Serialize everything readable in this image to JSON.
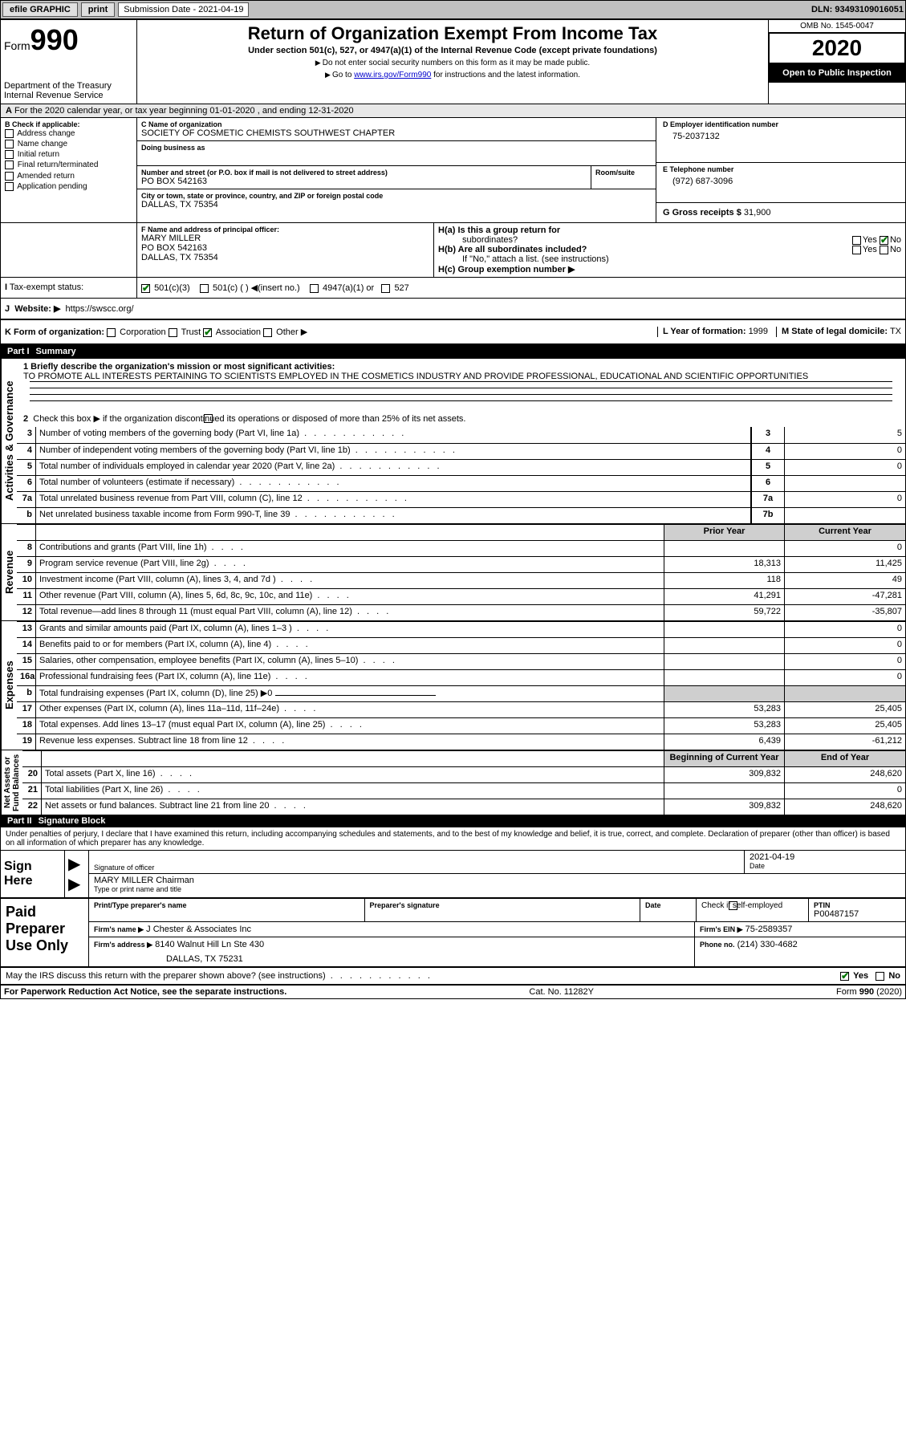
{
  "topbar": {
    "efile": "efile GRAPHIC",
    "print": "print",
    "sub_label": "Submission Date - 2021-04-19",
    "dln": "DLN: 93493109016051"
  },
  "header": {
    "form_word": "Form",
    "form_num": "990",
    "dept": "Department of the Treasury\nInternal Revenue Service",
    "title": "Return of Organization Exempt From Income Tax",
    "sub1": "Under section 501(c), 527, or 4947(a)(1) of the Internal Revenue Code (except private foundations)",
    "sub2": "Do not enter social security numbers on this form as it may be made public.",
    "sub3_pre": "Go to ",
    "sub3_link": "www.irs.gov/Form990",
    "sub3_post": " for instructions and the latest information.",
    "omb": "OMB No. 1545-0047",
    "year": "2020",
    "inspect": "Open to Public Inspection"
  },
  "lineA": {
    "text": "For the 2020 calendar year, or tax year beginning 01-01-2020   , and ending 12-31-2020",
    "prefix": "A"
  },
  "boxB": {
    "title": "B Check if applicable:",
    "items": [
      "Address change",
      "Name change",
      "Initial return",
      "Final return/terminated",
      "Amended return",
      "Application pending"
    ]
  },
  "boxC": {
    "name_label": "C Name of organization",
    "name": "SOCIETY OF COSMETIC CHEMISTS SOUTHWEST CHAPTER",
    "dba_label": "Doing business as",
    "addr_label": "Number and street (or P.O. box if mail is not delivered to street address)",
    "room_label": "Room/suite",
    "addr": "PO BOX 542163",
    "city_label": "City or town, state or province, country, and ZIP or foreign postal code",
    "city": "DALLAS, TX  75354"
  },
  "boxD": {
    "label": "D Employer identification number",
    "value": "75-2037132"
  },
  "boxE": {
    "label": "E Telephone number",
    "value": "(972) 687-3096"
  },
  "boxG": {
    "label": "G Gross receipts $",
    "value": "31,900"
  },
  "boxF": {
    "label": "F  Name and address of principal officer:",
    "name": "MARY MILLER",
    "addr1": "PO BOX 542163",
    "addr2": "DALLAS, TX  75354"
  },
  "boxH": {
    "a_label": "H(a)  Is this a group return for",
    "a_sub": "subordinates?",
    "b_label": "H(b)  Are all subordinates included?",
    "b_note": "If \"No,\" attach a list. (see instructions)",
    "c_label": "H(c)  Group exemption number ▶",
    "yes": "Yes",
    "no": "No"
  },
  "boxI": {
    "label": "Tax-exempt status:",
    "opts": [
      "501(c)(3)",
      "501(c) (  ) ◀(insert no.)",
      "4947(a)(1) or",
      "527"
    ]
  },
  "boxJ": {
    "label": "J",
    "text": "Website: ▶",
    "value": "https://swscc.org/"
  },
  "boxK": {
    "label": "K Form of organization:",
    "opts": [
      "Corporation",
      "Trust",
      "Association",
      "Other ▶"
    ],
    "checked_idx": 2
  },
  "boxL": {
    "label": "L Year of formation:",
    "value": "1999"
  },
  "boxM": {
    "label": "M State of legal domicile:",
    "value": "TX"
  },
  "part1": {
    "label": "Part I",
    "title": "Summary",
    "l1_label": "1  Briefly describe the organization's mission or most significant activities:",
    "l1_text": "TO PROMOTE ALL INTERESTS PERTAINING TO SCIENTISTS EMPLOYED IN THE COSMETICS INDUSTRY AND PROVIDE PROFESSIONAL, EDUCATIONAL AND SCIENTIFIC OPPORTUNITIES",
    "l2": "Check this box ▶       if the organization discontinued its operations or disposed of more than 25% of its net assets.",
    "lines_single": [
      {
        "n": "3",
        "t": "Number of voting members of the governing body (Part VI, line 1a)",
        "box": "3",
        "v": "5"
      },
      {
        "n": "4",
        "t": "Number of independent voting members of the governing body (Part VI, line 1b)",
        "box": "4",
        "v": "0"
      },
      {
        "n": "5",
        "t": "Total number of individuals employed in calendar year 2020 (Part V, line 2a)",
        "box": "5",
        "v": "0"
      },
      {
        "n": "6",
        "t": "Total number of volunteers (estimate if necessary)",
        "box": "6",
        "v": ""
      },
      {
        "n": "7a",
        "t": "Total unrelated business revenue from Part VIII, column (C), line 12",
        "box": "7a",
        "v": "0"
      },
      {
        "n": "b",
        "t": "Net unrelated business taxable income from Form 990-T, line 39",
        "box": "7b",
        "v": ""
      }
    ],
    "col_prior": "Prior Year",
    "col_curr": "Current Year",
    "revenue_tab": "Revenue",
    "revenue": [
      {
        "n": "8",
        "t": "Contributions and grants (Part VIII, line 1h)",
        "p": "",
        "c": "0"
      },
      {
        "n": "9",
        "t": "Program service revenue (Part VIII, line 2g)",
        "p": "18,313",
        "c": "11,425"
      },
      {
        "n": "10",
        "t": "Investment income (Part VIII, column (A), lines 3, 4, and 7d )",
        "p": "118",
        "c": "49"
      },
      {
        "n": "11",
        "t": "Other revenue (Part VIII, column (A), lines 5, 6d, 8c, 9c, 10c, and 11e)",
        "p": "41,291",
        "c": "-47,281"
      },
      {
        "n": "12",
        "t": "Total revenue—add lines 8 through 11 (must equal Part VIII, column (A), line 12)",
        "p": "59,722",
        "c": "-35,807"
      }
    ],
    "expenses_tab": "Expenses",
    "expenses": [
      {
        "n": "13",
        "t": "Grants and similar amounts paid (Part IX, column (A), lines 1–3 )",
        "p": "",
        "c": "0"
      },
      {
        "n": "14",
        "t": "Benefits paid to or for members (Part IX, column (A), line 4)",
        "p": "",
        "c": "0"
      },
      {
        "n": "15",
        "t": "Salaries, other compensation, employee benefits (Part IX, column (A), lines 5–10)",
        "p": "",
        "c": "0"
      },
      {
        "n": "16a",
        "t": "Professional fundraising fees (Part IX, column (A), line 11e)",
        "p": "",
        "c": "0"
      },
      {
        "n": "b",
        "t": "Total fundraising expenses (Part IX, column (D), line 25) ▶0",
        "p": "shade",
        "c": "shade"
      },
      {
        "n": "17",
        "t": "Other expenses (Part IX, column (A), lines 11a–11d, 11f–24e)",
        "p": "53,283",
        "c": "25,405"
      },
      {
        "n": "18",
        "t": "Total expenses. Add lines 13–17 (must equal Part IX, column (A), line 25)",
        "p": "53,283",
        "c": "25,405"
      },
      {
        "n": "19",
        "t": "Revenue less expenses. Subtract line 18 from line 12",
        "p": "6,439",
        "c": "-61,212"
      }
    ],
    "net_tab": "Net Assets or\nFund Balances",
    "col_beg": "Beginning of Current Year",
    "col_end": "End of Year",
    "net": [
      {
        "n": "20",
        "t": "Total assets (Part X, line 16)",
        "p": "309,832",
        "c": "248,620"
      },
      {
        "n": "21",
        "t": "Total liabilities (Part X, line 26)",
        "p": "",
        "c": "0"
      },
      {
        "n": "22",
        "t": "Net assets or fund balances. Subtract line 21 from line 20",
        "p": "309,832",
        "c": "248,620"
      }
    ],
    "activities_tab": "Activities & Governance"
  },
  "part2": {
    "label": "Part II",
    "title": "Signature Block",
    "decl": "Under penalties of perjury, I declare that I have examined this return, including accompanying schedules and statements, and to the best of my knowledge and belief, it is true, correct, and complete. Declaration of preparer (other than officer) is based on all information of which preparer has any knowledge.",
    "sign_here": "Sign Here",
    "sig_of_officer": "Signature of officer",
    "date_label": "Date",
    "date": "2021-04-19",
    "name_title": "MARY MILLER  Chairman",
    "type_label": "Type or print name and title",
    "paid": "Paid Preparer Use Only",
    "p_name_l": "Print/Type preparer's name",
    "p_sig_l": "Preparer's signature",
    "p_date_l": "Date",
    "p_check": "Check        if self-employed",
    "p_ptin_l": "PTIN",
    "p_ptin": "P00487157",
    "firm_name_l": "Firm's name     ▶",
    "firm_name": "J Chester & Associates Inc",
    "firm_ein_l": "Firm's EIN ▶",
    "firm_ein": "75-2589357",
    "firm_addr_l": "Firm's address ▶",
    "firm_addr1": "8140 Walnut Hill Ln Ste 430",
    "firm_addr2": "DALLAS, TX  75231",
    "phone_l": "Phone no.",
    "phone": "(214) 330-4682",
    "discuss": "May the IRS discuss this return with the preparer shown above? (see instructions)",
    "yes": "Yes",
    "no": "No"
  },
  "footer": {
    "l": "For Paperwork Reduction Act Notice, see the separate instructions.",
    "c": "Cat. No. 11282Y",
    "r": "Form 990 (2020)"
  },
  "colors": {
    "topbar_bg": "#c0c0c0",
    "black": "#000000",
    "shade": "#cfcfcf",
    "link": "#0000cc",
    "check": "#007700"
  }
}
